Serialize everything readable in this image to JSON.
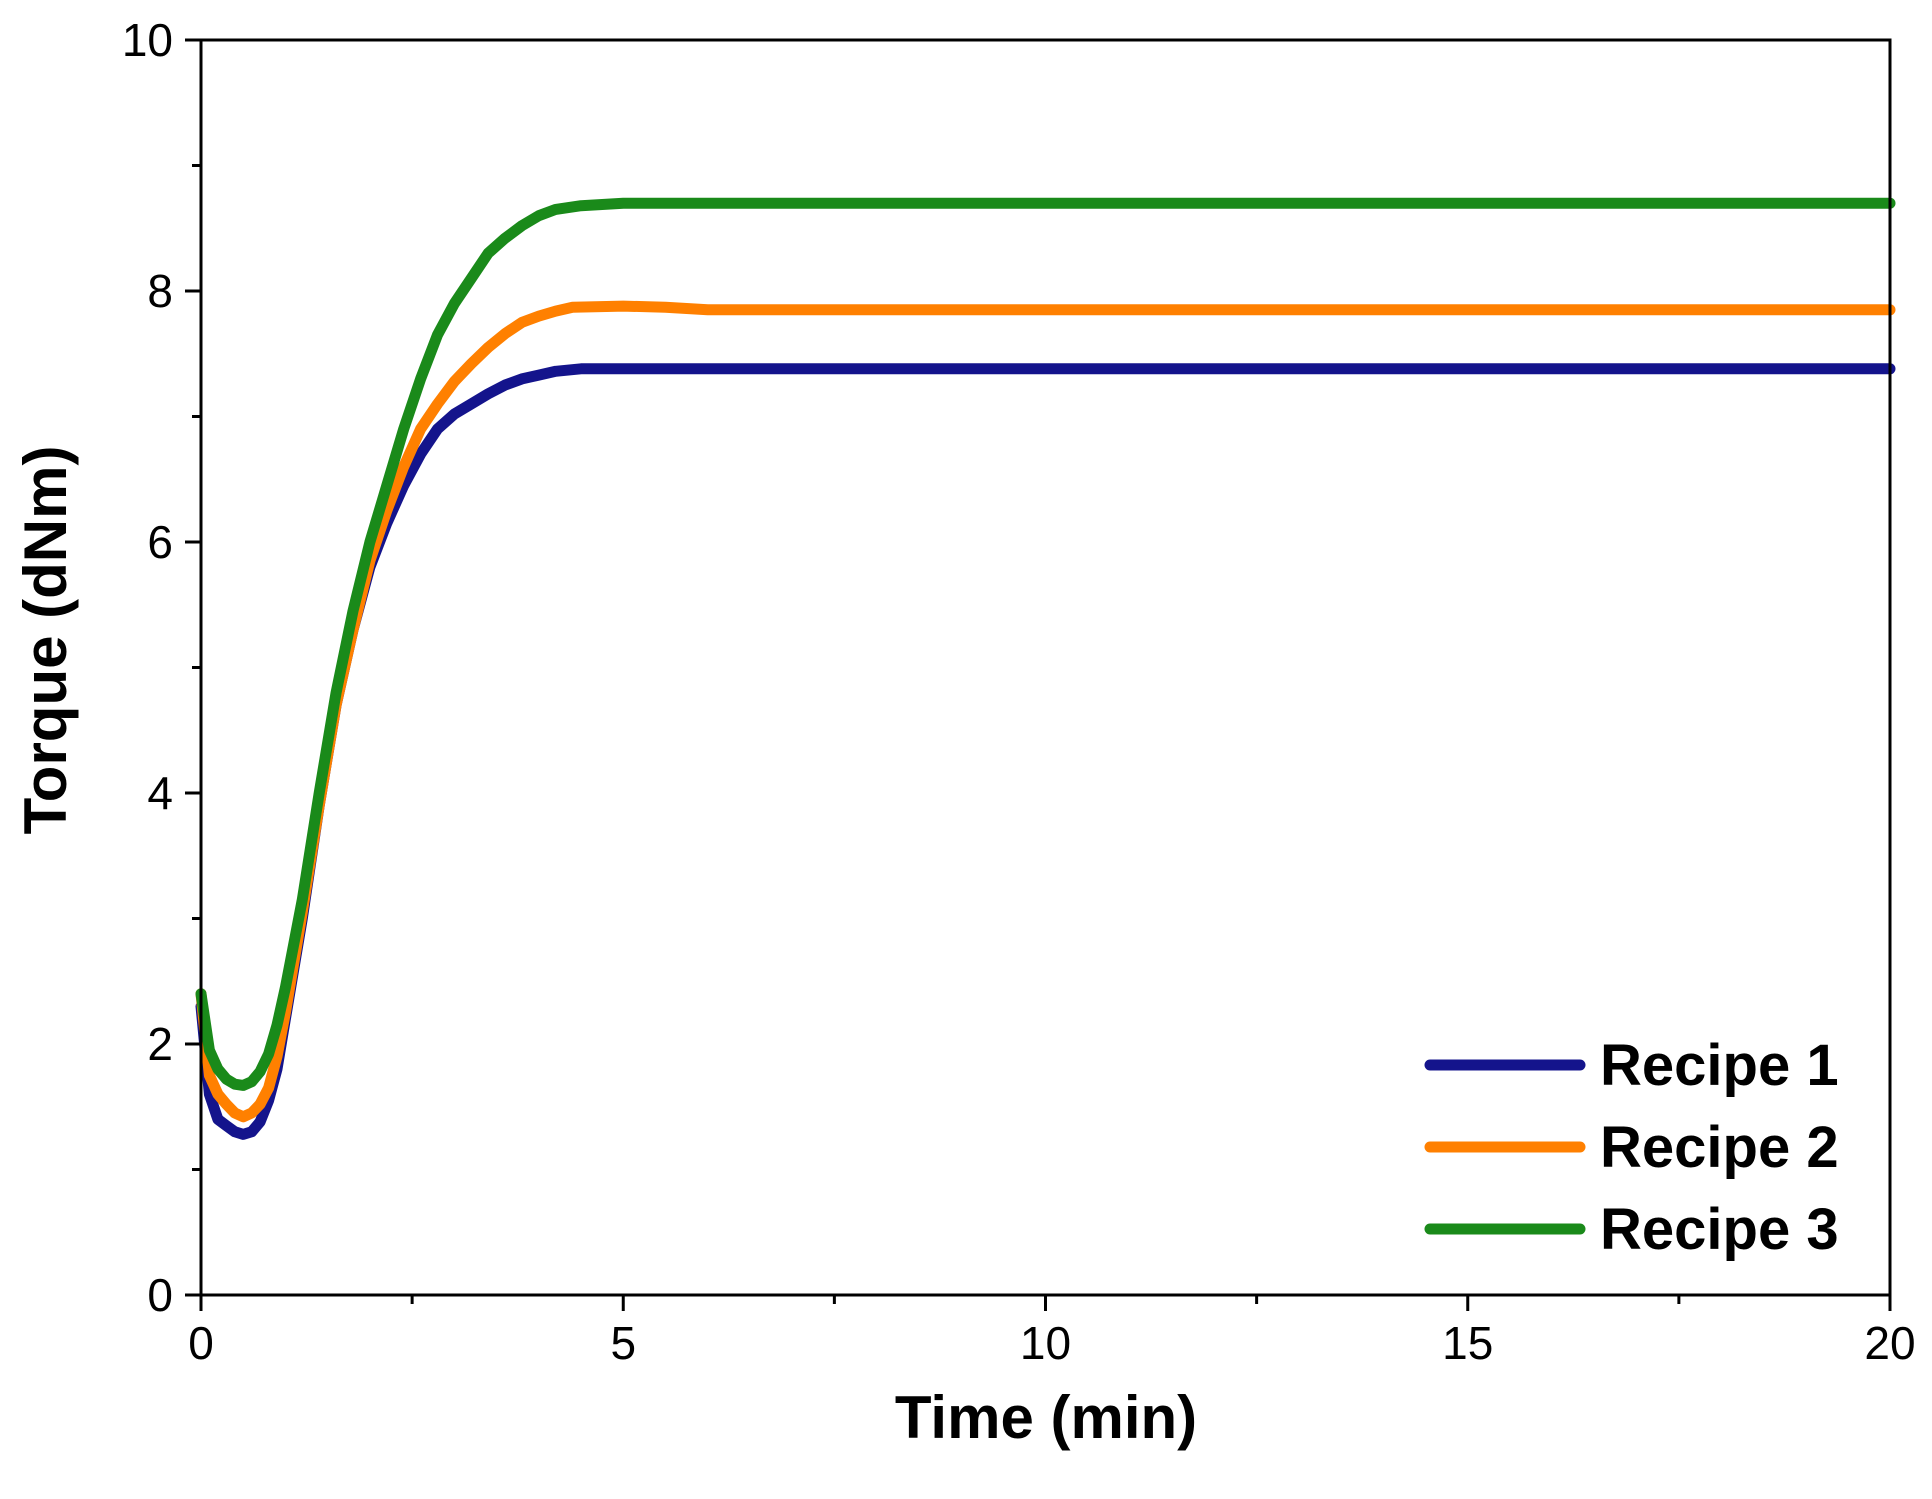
{
  "chart_data": {
    "type": "line",
    "title": "",
    "xlabel": "Time (min)",
    "ylabel": "Torque (dNm)",
    "xlim": [
      0,
      20
    ],
    "ylim": [
      0,
      10
    ],
    "x_ticks": [
      0,
      5,
      10,
      15,
      20
    ],
    "x_tick_labels": [
      "0",
      "5",
      "10",
      "15",
      "20"
    ],
    "x_minor_ticks": [
      2.5,
      7.5,
      12.5,
      17.5
    ],
    "y_ticks": [
      0,
      2,
      4,
      6,
      8,
      10
    ],
    "y_tick_labels": [
      "0",
      "2",
      "4",
      "6",
      "8",
      "10"
    ],
    "y_minor_ticks": [
      1,
      3,
      5,
      7,
      9
    ],
    "grid": false,
    "legend_position": "bottom-right",
    "series": [
      {
        "name": "Recipe 1",
        "color": "#14148c",
        "x": [
          0,
          0.1,
          0.2,
          0.3,
          0.4,
          0.5,
          0.6,
          0.7,
          0.8,
          0.9,
          1.0,
          1.2,
          1.4,
          1.6,
          1.8,
          2.0,
          2.2,
          2.4,
          2.6,
          2.8,
          3.0,
          3.2,
          3.4,
          3.6,
          3.8,
          4.0,
          4.2,
          4.5,
          5.0,
          6.0,
          8.0,
          10.0,
          12.0,
          15.0,
          18.0,
          20.0
        ],
        "values": [
          2.3,
          1.6,
          1.4,
          1.35,
          1.3,
          1.28,
          1.3,
          1.38,
          1.55,
          1.8,
          2.2,
          3.0,
          3.9,
          4.7,
          5.3,
          5.8,
          6.15,
          6.45,
          6.7,
          6.9,
          7.02,
          7.1,
          7.18,
          7.25,
          7.3,
          7.33,
          7.36,
          7.38,
          7.38,
          7.38,
          7.38,
          7.38,
          7.38,
          7.38,
          7.38,
          7.38
        ]
      },
      {
        "name": "Recipe 2",
        "color": "#ff8000",
        "x": [
          0,
          0.1,
          0.2,
          0.3,
          0.4,
          0.5,
          0.6,
          0.7,
          0.8,
          0.9,
          1.0,
          1.2,
          1.4,
          1.6,
          1.8,
          2.0,
          2.2,
          2.4,
          2.6,
          2.8,
          3.0,
          3.2,
          3.4,
          3.6,
          3.8,
          4.0,
          4.2,
          4.4,
          5.0,
          5.5,
          6.0,
          8.0,
          10.0,
          12.0,
          15.0,
          18.0,
          20.0
        ],
        "values": [
          2.4,
          1.75,
          1.6,
          1.52,
          1.45,
          1.42,
          1.45,
          1.52,
          1.65,
          1.9,
          2.25,
          3.05,
          3.9,
          4.7,
          5.3,
          5.85,
          6.25,
          6.6,
          6.9,
          7.1,
          7.28,
          7.42,
          7.55,
          7.66,
          7.75,
          7.8,
          7.84,
          7.87,
          7.88,
          7.87,
          7.85,
          7.85,
          7.85,
          7.85,
          7.85,
          7.85,
          7.85
        ]
      },
      {
        "name": "Recipe 3",
        "color": "#1a8a1a",
        "x": [
          0,
          0.1,
          0.2,
          0.3,
          0.4,
          0.5,
          0.6,
          0.7,
          0.8,
          0.9,
          1.0,
          1.2,
          1.4,
          1.6,
          1.8,
          2.0,
          2.2,
          2.4,
          2.6,
          2.8,
          3.0,
          3.2,
          3.4,
          3.6,
          3.8,
          4.0,
          4.2,
          4.5,
          5.0,
          5.5,
          6.0,
          8.0,
          10.0,
          12.0,
          15.0,
          18.0,
          20.0
        ],
        "values": [
          2.4,
          1.95,
          1.8,
          1.72,
          1.68,
          1.67,
          1.7,
          1.78,
          1.92,
          2.15,
          2.45,
          3.15,
          4.0,
          4.8,
          5.45,
          6.0,
          6.45,
          6.9,
          7.3,
          7.65,
          7.9,
          8.1,
          8.3,
          8.42,
          8.52,
          8.6,
          8.65,
          8.68,
          8.7,
          8.7,
          8.7,
          8.7,
          8.7,
          8.7,
          8.7,
          8.7,
          8.7
        ]
      }
    ]
  }
}
